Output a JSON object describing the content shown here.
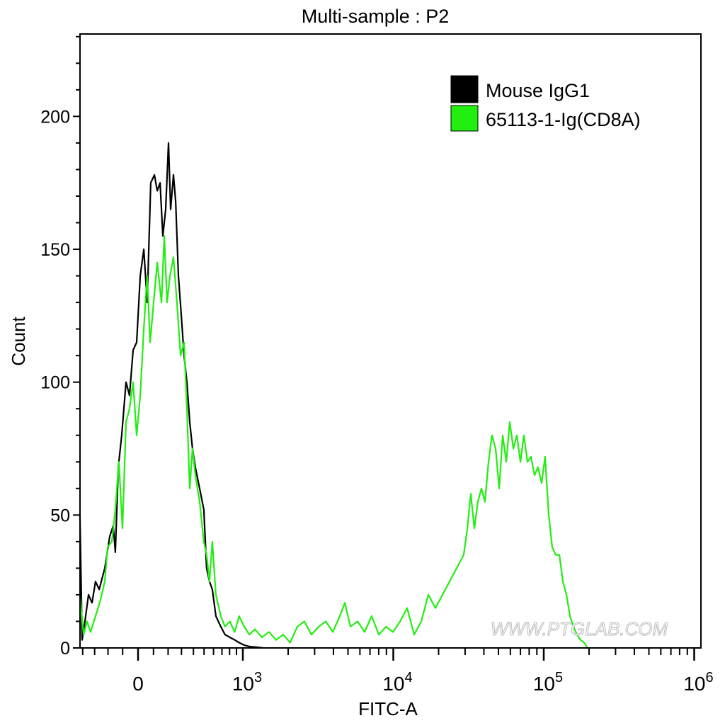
{
  "chart_data": {
    "type": "line",
    "title": "Multi-sample : P2",
    "xlabel": "FITC-A",
    "ylabel": "Count",
    "x_scale": "biexponential",
    "xlim": [
      -425,
      1000000
    ],
    "ylim": [
      0,
      231
    ],
    "grid": false,
    "legend_position": "top-right",
    "x_ticks": [
      {
        "value": 0,
        "base": "0",
        "exp": ""
      },
      {
        "value": 1000,
        "base": "10",
        "exp": "3"
      },
      {
        "value": 10000,
        "base": "10",
        "exp": "4"
      },
      {
        "value": 100000,
        "base": "10",
        "exp": "5"
      },
      {
        "value": 1000000,
        "base": "10",
        "exp": "6"
      }
    ],
    "y_ticks": [
      0,
      50,
      100,
      150,
      200
    ],
    "y_tick_labels": [
      "0",
      "50",
      "100",
      "150",
      "200"
    ],
    "watermark": "WWW.PTGLAB.COM",
    "series": [
      {
        "name": "Mouse IgG1",
        "color": "#000000",
        "points": [
          [
            -425,
            50
          ],
          [
            -405,
            3
          ],
          [
            -380,
            10
          ],
          [
            -350,
            20
          ],
          [
            -321,
            17
          ],
          [
            -293,
            25
          ],
          [
            -265,
            22
          ],
          [
            -223,
            30
          ],
          [
            -188,
            42
          ],
          [
            -163,
            46
          ],
          [
            -149,
            36
          ],
          [
            -129,
            68
          ],
          [
            -106,
            80
          ],
          [
            -78,
            100
          ],
          [
            -55,
            95
          ],
          [
            -32,
            112
          ],
          [
            -9,
            115
          ],
          [
            14,
            140
          ],
          [
            37,
            150
          ],
          [
            59,
            130
          ],
          [
            82,
            175
          ],
          [
            106,
            178
          ],
          [
            125,
            172
          ],
          [
            144,
            175
          ],
          [
            163,
            155
          ],
          [
            183,
            165
          ],
          [
            203,
            190
          ],
          [
            218,
            165
          ],
          [
            239,
            178
          ],
          [
            255,
            168
          ],
          [
            276,
            140
          ],
          [
            299,
            125
          ],
          [
            321,
            110
          ],
          [
            344,
            100
          ],
          [
            368,
            85
          ],
          [
            392,
            75
          ],
          [
            417,
            68
          ],
          [
            457,
            60
          ],
          [
            498,
            52
          ],
          [
            526,
            30
          ],
          [
            556,
            25
          ],
          [
            587,
            22
          ],
          [
            627,
            12
          ],
          [
            686,
            8
          ],
          [
            739,
            5
          ],
          [
            804,
            4
          ],
          [
            874,
            3
          ],
          [
            941,
            2
          ],
          [
            1025,
            1
          ],
          [
            1113,
            0.5
          ],
          [
            1218,
            0.3
          ],
          [
            1365,
            0
          ]
        ]
      },
      {
        "name": "65113-1-Ig(CD8A)",
        "color": "#22ee11",
        "points": [
          [
            -425,
            20
          ],
          [
            -392,
            5
          ],
          [
            -362,
            10
          ],
          [
            -333,
            6
          ],
          [
            -293,
            12
          ],
          [
            -255,
            18
          ],
          [
            -223,
            25
          ],
          [
            -203,
            38
          ],
          [
            -173,
            40
          ],
          [
            -149,
            52
          ],
          [
            -125,
            70
          ],
          [
            -101,
            45
          ],
          [
            -78,
            85
          ],
          [
            -55,
            90
          ],
          [
            -32,
            100
          ],
          [
            -9,
            80
          ],
          [
            14,
            95
          ],
          [
            37,
            120
          ],
          [
            59,
            140
          ],
          [
            78,
            115
          ],
          [
            101,
            130
          ],
          [
            125,
            145
          ],
          [
            154,
            130
          ],
          [
            173,
            155
          ],
          [
            193,
            130
          ],
          [
            213,
            140
          ],
          [
            239,
            147
          ],
          [
            265,
            130
          ],
          [
            293,
            110
          ],
          [
            321,
            115
          ],
          [
            344,
            90
          ],
          [
            368,
            60
          ],
          [
            392,
            75
          ],
          [
            417,
            65
          ],
          [
            457,
            55
          ],
          [
            498,
            40
          ],
          [
            526,
            35
          ],
          [
            556,
            25
          ],
          [
            587,
            40
          ],
          [
            627,
            20
          ],
          [
            686,
            12
          ],
          [
            739,
            8
          ],
          [
            804,
            10
          ],
          [
            874,
            6
          ],
          [
            941,
            12
          ],
          [
            1022,
            8
          ],
          [
            1103,
            5
          ],
          [
            1202,
            7
          ],
          [
            1340,
            4
          ],
          [
            1493,
            6
          ],
          [
            1663,
            3
          ],
          [
            1853,
            5
          ],
          [
            2065,
            2
          ],
          [
            2301,
            8
          ],
          [
            2563,
            10
          ],
          [
            2856,
            5
          ],
          [
            3190,
            8
          ],
          [
            3555,
            10
          ],
          [
            3962,
            6
          ],
          [
            4415,
            12
          ],
          [
            4764,
            17
          ],
          [
            5192,
            8
          ],
          [
            5784,
            10
          ],
          [
            6445,
            6
          ],
          [
            7181,
            12
          ],
          [
            8017,
            5
          ],
          [
            8933,
            8
          ],
          [
            9954,
            6
          ],
          [
            11092,
            10
          ],
          [
            12359,
            15
          ],
          [
            13772,
            5
          ],
          [
            15346,
            10
          ],
          [
            17100,
            20
          ],
          [
            19055,
            15
          ],
          [
            21232,
            20
          ],
          [
            23660,
            25
          ],
          [
            26363,
            30
          ],
          [
            29376,
            35
          ],
          [
            31046,
            45
          ],
          [
            32734,
            58
          ],
          [
            34594,
            45
          ],
          [
            36475,
            55
          ],
          [
            38548,
            60
          ],
          [
            40644,
            55
          ],
          [
            42954,
            70
          ],
          [
            45290,
            80
          ],
          [
            47863,
            75
          ],
          [
            50582,
            60
          ],
          [
            53333,
            80
          ],
          [
            56364,
            70
          ],
          [
            59429,
            85
          ],
          [
            62806,
            75
          ],
          [
            66222,
            80
          ],
          [
            69984,
            70
          ],
          [
            73790,
            80
          ],
          [
            77983,
            70
          ],
          [
            82224,
            72
          ],
          [
            86896,
            65
          ],
          [
            91622,
            68
          ],
          [
            96828,
            62
          ],
          [
            102094,
            72
          ],
          [
            107895,
            50
          ],
          [
            113763,
            38
          ],
          [
            120226,
            35
          ],
          [
            127057,
            35
          ],
          [
            133968,
            25
          ],
          [
            141579,
            20
          ],
          [
            149279,
            12
          ],
          [
            157761,
            8
          ],
          [
            166341,
            5
          ],
          [
            175792,
            3
          ],
          [
            185353,
            2
          ],
          [
            195884,
            0
          ]
        ]
      }
    ]
  }
}
